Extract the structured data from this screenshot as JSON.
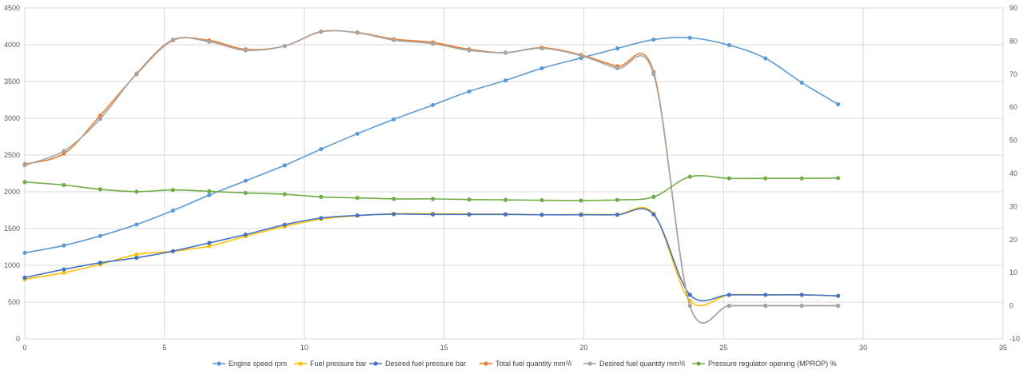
{
  "colors": {
    "Engine speed rpm": "#5b9bd5",
    "Fuel pressure bar": "#ffc000",
    "Desired fuel pressure bar": "#4472c4",
    "Total fuel quantity mm³/i": "#ed7d31",
    "Desired fuel quantity mm³/i": "#a5a5a5",
    "Pressure regulator opening (MPROP) %": "#70ad47",
    "grid": "#d9d9d9",
    "axis_text": "#595959"
  },
  "chart_data": {
    "type": "line",
    "smoothed": true,
    "grid": true,
    "legend_position": "bottom",
    "x_axis": {
      "min": 0,
      "max": 35,
      "ticks": [
        0,
        5,
        10,
        15,
        20,
        25,
        30,
        35
      ]
    },
    "y_left": {
      "min": 0,
      "max": 4500,
      "ticks": [
        0,
        500,
        1000,
        1500,
        2000,
        2500,
        3000,
        3500,
        4000,
        4500
      ]
    },
    "y_right": {
      "min": -10,
      "max": 90,
      "ticks": [
        -10,
        0,
        10,
        20,
        30,
        40,
        50,
        60,
        70,
        80,
        90
      ]
    },
    "x": [
      0,
      1.4,
      2.7,
      4.0,
      5.3,
      6.6,
      7.9,
      9.3,
      10.6,
      11.9,
      13.2,
      14.6,
      15.9,
      17.2,
      18.5,
      19.9,
      21.2,
      22.5,
      23.8,
      25.2,
      26.5,
      27.8,
      29.1
    ],
    "series": [
      {
        "name": "Engine speed rpm",
        "axis": "left",
        "values": [
          1170,
          1270,
          1400,
          1555,
          1745,
          1955,
          2150,
          2360,
          2580,
          2790,
          2985,
          3180,
          3365,
          3515,
          3680,
          3820,
          3950,
          4070,
          4095,
          3995,
          3815,
          3485,
          3190
        ]
      },
      {
        "name": "Fuel pressure bar",
        "axis": "right",
        "values": [
          8,
          10,
          12.5,
          15.5,
          16.5,
          18,
          21,
          24,
          26.2,
          27.2,
          27.8,
          27.8,
          27.7,
          27.7,
          27.5,
          27.6,
          27.6,
          27.8,
          1.5,
          3.3,
          3.3,
          3.3,
          3
        ]
      },
      {
        "name": "Desired fuel pressure bar",
        "axis": "right",
        "values": [
          8.5,
          11,
          13,
          14.5,
          16.5,
          19,
          21.5,
          24.5,
          26.5,
          27.3,
          27.7,
          27.6,
          27.6,
          27.6,
          27.5,
          27.5,
          27.5,
          27.6,
          3.3,
          3.3,
          3.3,
          3.3,
          3
        ]
      },
      {
        "name": "Total fuel quantity mm³/i",
        "axis": "right",
        "values": [
          42.8,
          46,
          57.5,
          70,
          80.2,
          80.2,
          77.5,
          78.5,
          82.8,
          82.6,
          80.6,
          79.6,
          77.5,
          76.5,
          78,
          75.8,
          72.4,
          70.6,
          0,
          0,
          0,
          0,
          0
        ]
      },
      {
        "name": "Desired fuel quantity mm³/i",
        "axis": "right",
        "values": [
          42.5,
          46.8,
          56.5,
          70.2,
          80.4,
          79.8,
          77.2,
          78.5,
          82.9,
          82.5,
          80.3,
          79.2,
          77.2,
          76.5,
          77.8,
          75.6,
          71.8,
          70,
          0,
          0,
          0,
          0,
          0
        ]
      },
      {
        "name": "Pressure regulator opening (MPROP) %",
        "axis": "right",
        "values": [
          37.4,
          36.5,
          35.2,
          34.5,
          35,
          34.6,
          34.1,
          33.7,
          32.9,
          32.6,
          32.3,
          32.3,
          32.1,
          32,
          31.9,
          31.8,
          32,
          32.9,
          39,
          38.5,
          38.5,
          38.5,
          38.6
        ]
      }
    ]
  }
}
